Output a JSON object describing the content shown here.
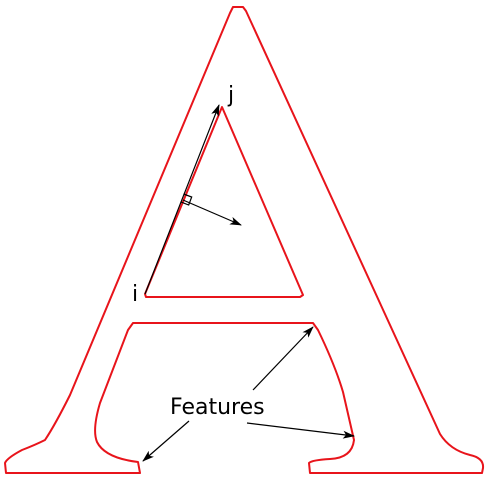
{
  "labels": {
    "i": "i",
    "j": "j",
    "features": "Features"
  },
  "colors": {
    "outline": "#e8141b",
    "arrow": "#000000",
    "text": "#000000"
  }
}
